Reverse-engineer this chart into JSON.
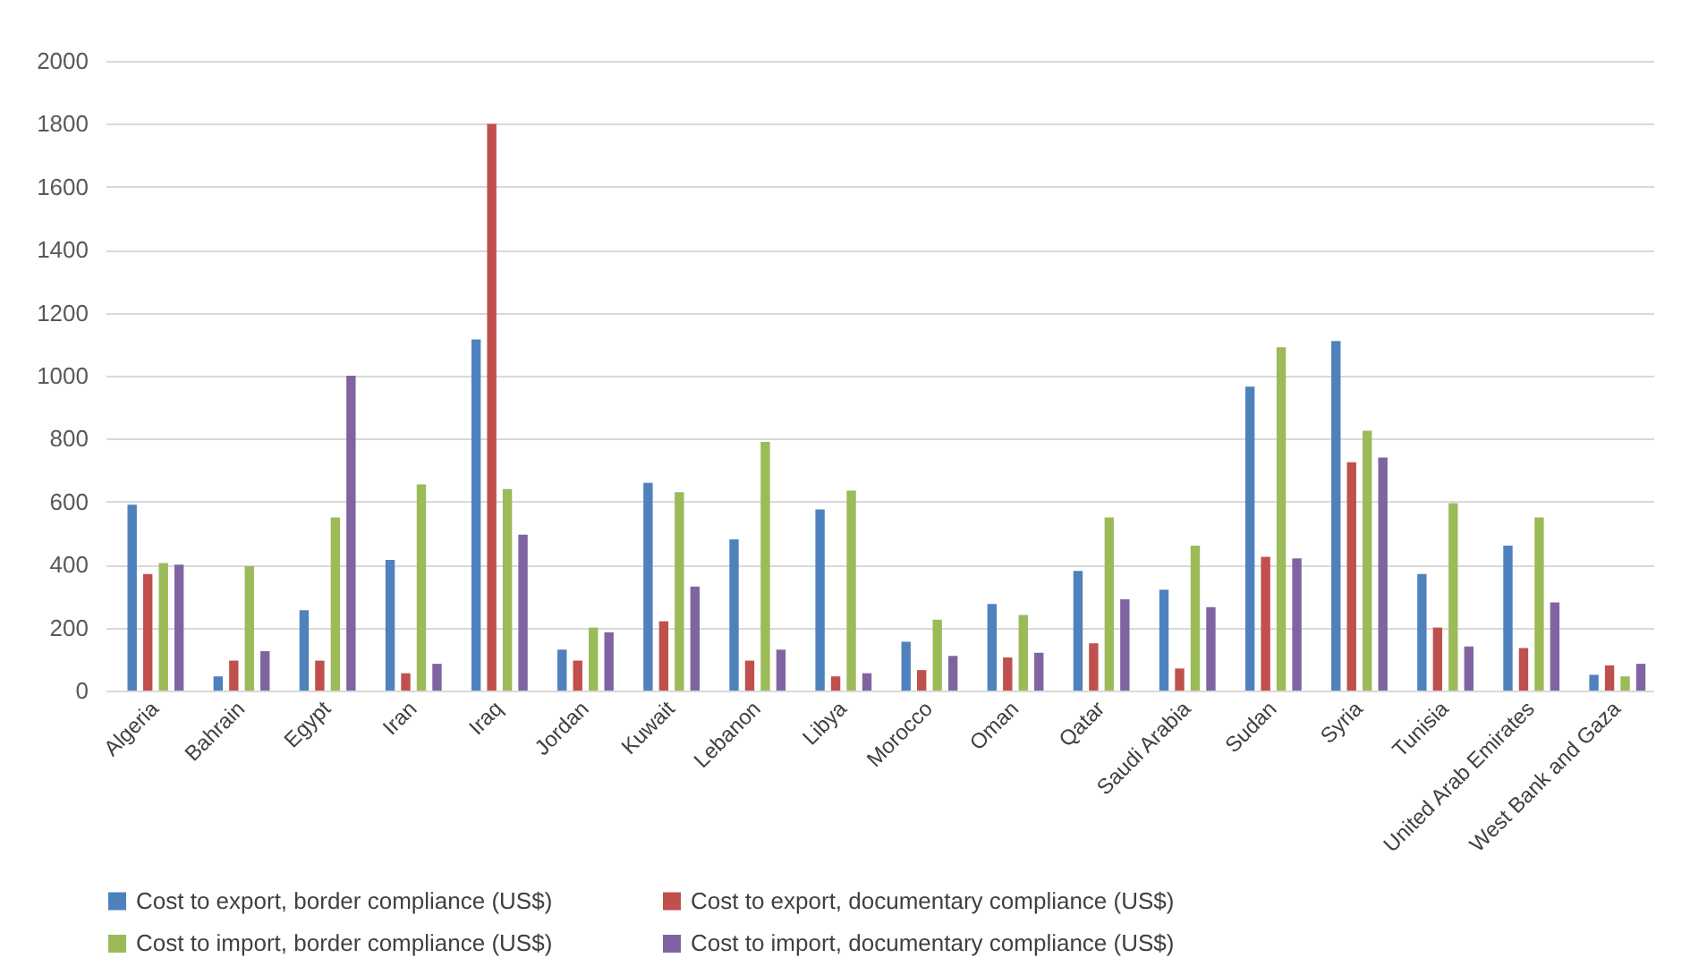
{
  "chart_data": {
    "type": "bar",
    "categories": [
      "Algeria",
      "Bahrain",
      "Egypt",
      "Iran",
      "Iraq",
      "Jordan",
      "Kuwait",
      "Lebanon",
      "Libya",
      "Morocco",
      "Oman",
      "Qatar",
      "Saudi Arabia",
      "Sudan",
      "Syria",
      "Tunisia",
      "United Arab Emirates",
      "West Bank and Gaza"
    ],
    "series": [
      {
        "name": "Cost to export, border compliance (US$)",
        "color": "#4f81bd",
        "values": [
          590,
          45,
          255,
          415,
          1115,
          130,
          660,
          480,
          575,
          155,
          275,
          380,
          320,
          965,
          1110,
          370,
          460,
          50
        ]
      },
      {
        "name": "Cost to export, documentary compliance (US$)",
        "color": "#c0504d",
        "values": [
          370,
          95,
          95,
          55,
          1800,
          95,
          220,
          95,
          45,
          65,
          105,
          150,
          70,
          425,
          725,
          200,
          135,
          80
        ]
      },
      {
        "name": "Cost to import, border compliance (US$)",
        "color": "#9bbb59",
        "values": [
          405,
          395,
          550,
          655,
          640,
          200,
          630,
          790,
          635,
          225,
          240,
          550,
          460,
          1090,
          825,
          595,
          550,
          45
        ]
      },
      {
        "name": "Cost to import, documentary compliance (US$)",
        "color": "#8064a2",
        "values": [
          400,
          125,
          1000,
          85,
          495,
          185,
          330,
          130,
          55,
          110,
          120,
          290,
          265,
          420,
          740,
          140,
          280,
          85
        ]
      }
    ],
    "ylim": [
      0,
      2000
    ],
    "yticks": [
      0,
      200,
      400,
      600,
      800,
      1000,
      1200,
      1400,
      1600,
      1800,
      2000
    ],
    "grid": "y",
    "legend": "bottom"
  }
}
